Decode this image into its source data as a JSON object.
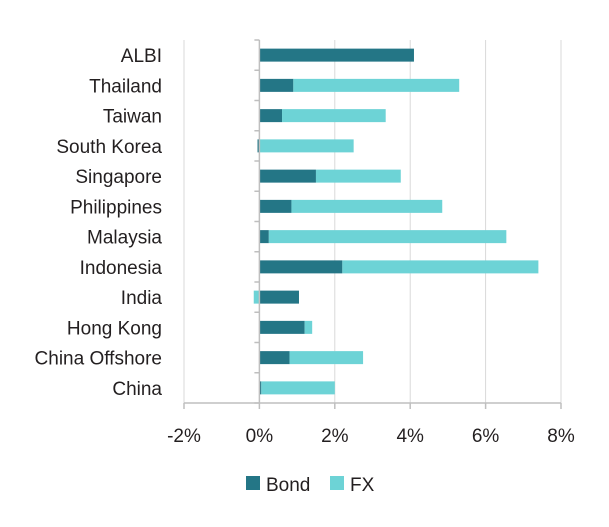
{
  "chart_data": {
    "type": "bar",
    "orientation": "horizontal",
    "stacked": true,
    "categories": [
      "ALBI",
      "Thailand",
      "Taiwan",
      "South Korea",
      "Singapore",
      "Philippines",
      "Malaysia",
      "Indonesia",
      "India",
      "Hong Kong",
      "China Offshore",
      "China"
    ],
    "series": [
      {
        "name": "Bond",
        "color": "#247686",
        "values": [
          4.1,
          0.9,
          0.6,
          -0.05,
          1.5,
          0.85,
          0.25,
          2.2,
          1.05,
          1.2,
          0.8,
          0.05
        ]
      },
      {
        "name": "FX",
        "color": "#6dd3d6",
        "values": [
          0,
          4.4,
          2.75,
          2.5,
          2.25,
          4.0,
          6.3,
          5.2,
          -0.15,
          0.2,
          1.95,
          1.95
        ]
      }
    ],
    "xlim": [
      -2,
      8
    ],
    "xticks": [
      -2,
      0,
      2,
      4,
      6,
      8
    ],
    "xtick_labels": [
      "-2%",
      "0%",
      "2%",
      "4%",
      "6%",
      "8%"
    ],
    "grid": "vertical",
    "legend_position": "bottom",
    "title": "",
    "xlabel": "",
    "ylabel": ""
  },
  "legend": {
    "bond_label": "Bond",
    "fx_label": "FX"
  }
}
